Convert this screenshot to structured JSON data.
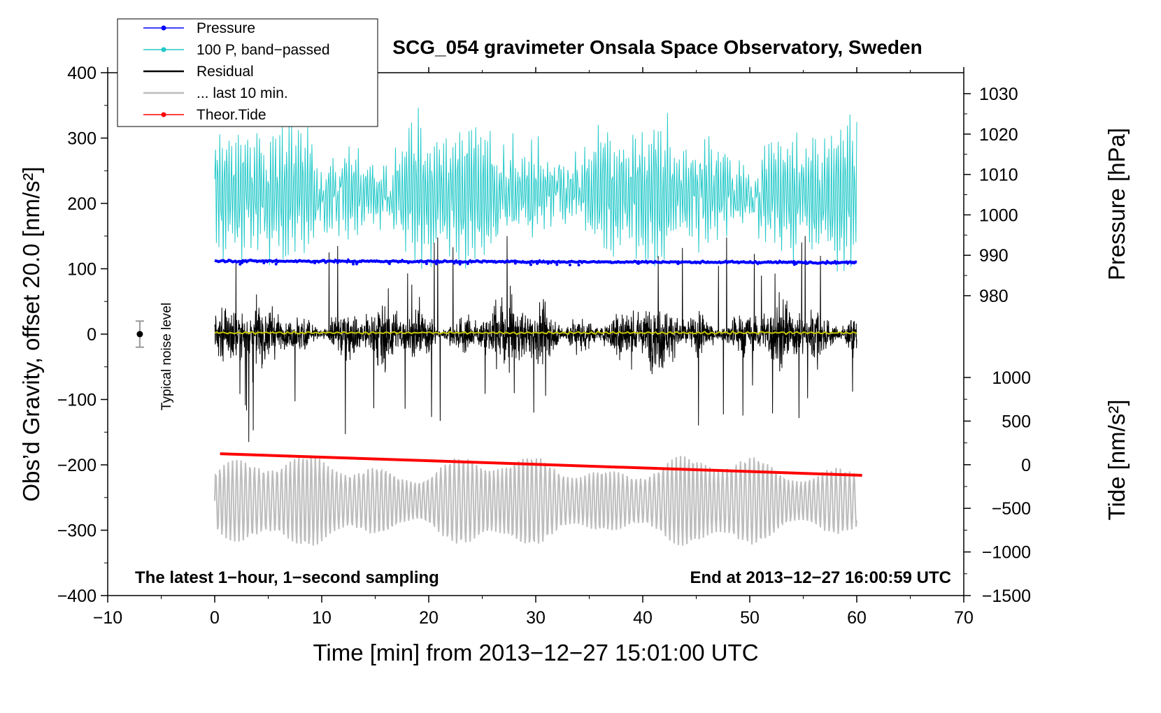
{
  "chart_data": {
    "type": "line",
    "title": "SCG_054 gravimeter Onsala Space Observatory, Sweden",
    "xlabel": "Time [min] from 2013−12−27 15:01:00 UTC",
    "ylabel_left": "Obs’d Gravity, offset 20.0 [nm/s²]",
    "ylabel_right_pressure": "Pressure [hPa]",
    "ylabel_right_tide": "Tide [nm/s²]",
    "xlim": [
      -10,
      70
    ],
    "ylim_left": [
      -400,
      400
    ],
    "x_ticks": [
      "−10",
      "0",
      "10",
      "20",
      "30",
      "40",
      "50",
      "60",
      "70"
    ],
    "y_ticks_left": [
      "400",
      "300",
      "200",
      "100",
      "0",
      "−100",
      "−200",
      "−300",
      "−400"
    ],
    "pressure_ticks": [
      "1030",
      "1020",
      "1010",
      "1000",
      "990",
      "980"
    ],
    "tide_ticks": [
      "1000",
      "500",
      "0",
      "−500",
      "−1000",
      "−1500"
    ],
    "annotation_left": "The latest 1−hour, 1−second sampling",
    "annotation_right": "End at 2013−12−27 16:00:59 UTC",
    "noise_label": "Typical noise level",
    "noise_level": {
      "x": -7,
      "y": 0,
      "half_range": 20
    },
    "legend": [
      {
        "label": "Pressure",
        "color": "#0000ff",
        "marker": true
      },
      {
        "label": "100 P, band−passed",
        "color": "#22c8c8",
        "marker": true
      },
      {
        "label": "Residual",
        "color": "#000000",
        "marker": false
      },
      {
        "label": "... last 10 min.",
        "color": "#bdbdbd",
        "marker": false
      },
      {
        "label": "Theor.Tide",
        "color": "#ff0000",
        "marker": true
      }
    ],
    "series": [
      {
        "name": "Pressure",
        "approx_hPa": 988.5,
        "left_axis_equiv": 112,
        "x_range": [
          0,
          60
        ]
      },
      {
        "name": "100 P, band−passed",
        "center": 215,
        "amplitude": 90,
        "x_range": [
          0,
          60
        ]
      },
      {
        "name": "Residual",
        "center": 0,
        "amplitude": 65,
        "x_range": [
          0,
          60
        ]
      },
      {
        "name": "Residual smoothed",
        "color": "#c8c800",
        "value": 2,
        "x_range": [
          0,
          60
        ]
      },
      {
        "name": "... last 10 min.",
        "center": -255,
        "amplitude": 60,
        "x_range": [
          0,
          60
        ]
      },
      {
        "name": "Theor.Tide",
        "start": [
          0.5,
          -183
        ],
        "end": [
          60.5,
          -216
        ]
      }
    ]
  }
}
